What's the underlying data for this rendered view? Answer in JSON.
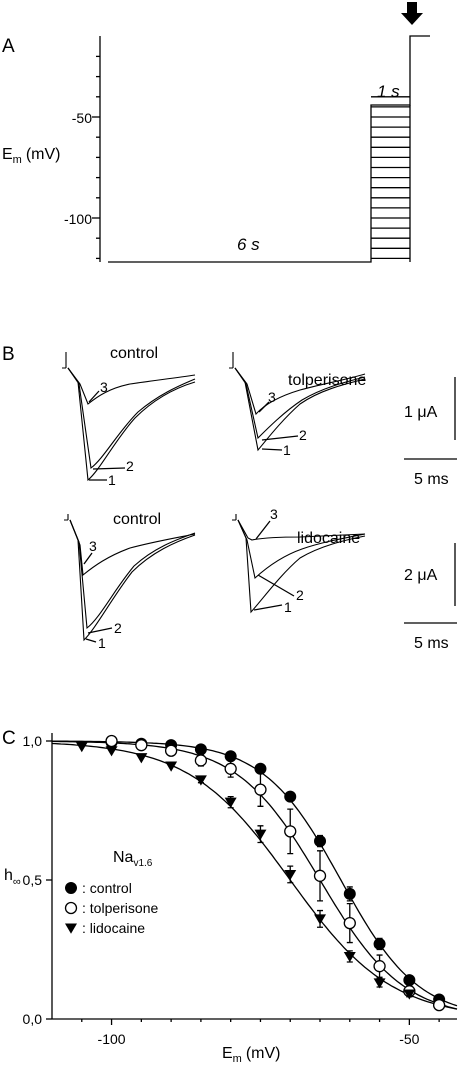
{
  "panels": {
    "a": "A",
    "b": "B",
    "c": "C"
  },
  "panel_a": {
    "y_label": "E",
    "y_label_sub": "m",
    "y_label_unit": "(mV)",
    "ticks": [
      "-50",
      "-100"
    ],
    "time_long": "6 s",
    "time_short": "1 s",
    "holding_potential": -130,
    "top_potential": -20,
    "step_levels": [
      -130,
      -125,
      -120,
      -115,
      -110,
      -105,
      -100,
      -95,
      -90,
      -85,
      -80,
      -75,
      -70,
      -65,
      -60,
      -55,
      -50,
      -45,
      -40
    ]
  },
  "panel_b": {
    "control_label": "control",
    "tolperisone_label": "tolperisone",
    "lidocaine_label": "lidocaine",
    "trace_labels": [
      "1",
      "2",
      "3"
    ],
    "scale_top_current": "1 μA",
    "scale_bottom_current": "2 μA",
    "scale_time": "5 ms"
  },
  "chart_data": {
    "type": "scatter",
    "title": "",
    "xlabel": "E",
    "xlabel_sub": "m",
    "xlabel_unit": "(mV)",
    "ylabel": "h",
    "ylabel_sub": "∞",
    "xlim": [
      -110,
      -42
    ],
    "ylim": [
      0,
      1.0
    ],
    "x_ticks": [
      -100,
      -50
    ],
    "x_tick_labels": [
      "-100",
      "-50"
    ],
    "y_ticks": [
      0,
      0.5,
      1.0
    ],
    "y_tick_labels": [
      "0,0",
      "0,5",
      "1,0"
    ],
    "legend_title": "Na",
    "legend_title_sub": "v1.6",
    "series": [
      {
        "name": ": control",
        "marker": "filled-circle",
        "x": [
          -100,
          -95,
          -90,
          -85,
          -80,
          -75,
          -70,
          -65,
          -60,
          -55,
          -50,
          -45
        ],
        "y": [
          0.995,
          0.99,
          0.985,
          0.97,
          0.945,
          0.9,
          0.8,
          0.64,
          0.45,
          0.27,
          0.14,
          0.07
        ],
        "err": [
          0,
          0,
          0,
          0,
          0,
          0.01,
          0.015,
          0.02,
          0.025,
          0.02,
          0.015,
          0.01
        ],
        "fit": {
          "v_half": -61.5,
          "k": 6.5
        }
      },
      {
        "name": ": tolperisone",
        "marker": "open-circle",
        "x": [
          -100,
          -95,
          -90,
          -85,
          -80,
          -75,
          -70,
          -65,
          -60,
          -55,
          -50,
          -45
        ],
        "y": [
          1.0,
          0.985,
          0.965,
          0.93,
          0.9,
          0.825,
          0.675,
          0.515,
          0.345,
          0.19,
          0.1,
          0.05
        ],
        "err": [
          0,
          0,
          0.01,
          0.02,
          0.03,
          0.06,
          0.08,
          0.09,
          0.07,
          0.04,
          0.02,
          0.01
        ],
        "fit": {
          "v_half": -65.0,
          "k": 7.0
        }
      },
      {
        "name": ": lidocaine",
        "marker": "filled-triangle-down",
        "x": [
          -105,
          -100,
          -95,
          -90,
          -85,
          -80,
          -75,
          -70,
          -65,
          -60,
          -55,
          -50
        ],
        "y": [
          0.98,
          0.965,
          0.94,
          0.91,
          0.86,
          0.78,
          0.665,
          0.52,
          0.36,
          0.225,
          0.13,
          0.09
        ],
        "err": [
          0,
          0,
          0,
          0,
          0.01,
          0.02,
          0.03,
          0.03,
          0.03,
          0.02,
          0.015,
          0.01
        ],
        "fit": {
          "v_half": -70.0,
          "k": 8.5
        }
      }
    ]
  }
}
